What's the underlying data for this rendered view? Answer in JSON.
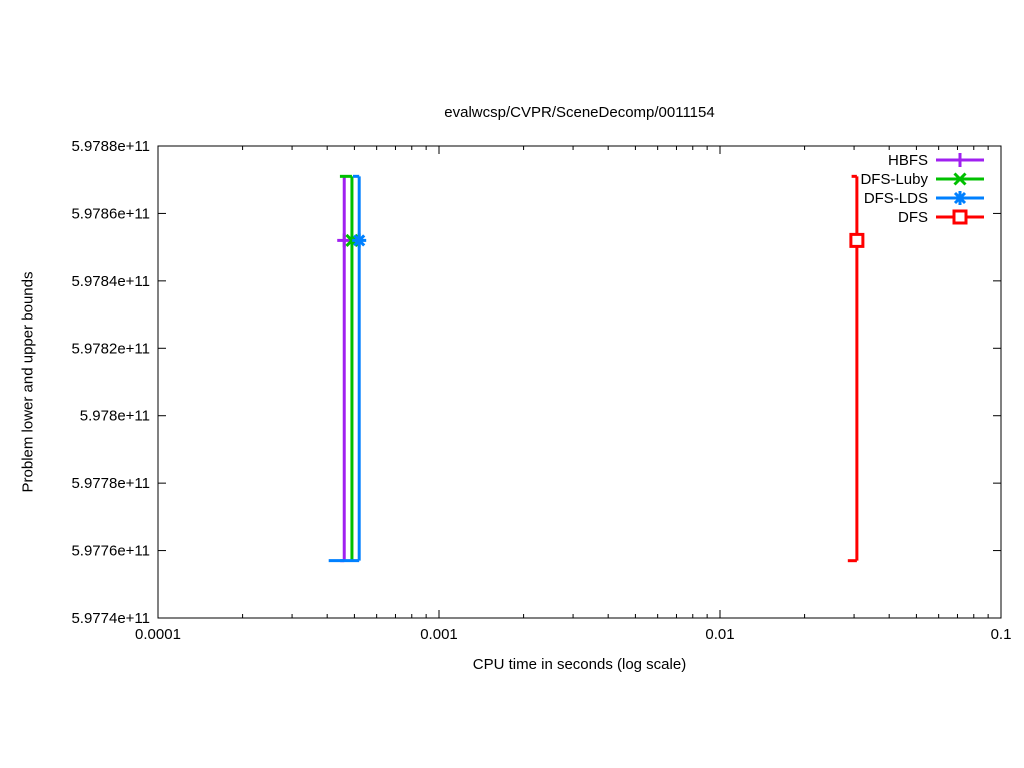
{
  "chart_data": {
    "type": "line",
    "title": "evalwcsp/CVPR/SceneDecomp/0011154",
    "xlabel": "CPU time in seconds (log scale)",
    "ylabel": "Problem lower and upper bounds",
    "x_scale": "log",
    "xlim": [
      0.0001,
      0.1
    ],
    "ylim": [
      597740000000,
      597880000000
    ],
    "grid": false,
    "legend_position": "top-right-inside",
    "x_ticks": [
      {
        "v": 0.0001,
        "label": "0.0001"
      },
      {
        "v": 0.001,
        "label": "0.001"
      },
      {
        "v": 0.01,
        "label": "0.01"
      },
      {
        "v": 0.1,
        "label": "0.1"
      }
    ],
    "y_ticks": [
      {
        "v": 597740000000,
        "label": "5.9774e+11"
      },
      {
        "v": 597760000000,
        "label": "5.9776e+11"
      },
      {
        "v": 597780000000,
        "label": "5.9778e+11"
      },
      {
        "v": 597800000000,
        "label": "5.978e+11"
      },
      {
        "v": 597820000000,
        "label": "5.9782e+11"
      },
      {
        "v": 597840000000,
        "label": "5.9784e+11"
      },
      {
        "v": 597860000000,
        "label": "5.9786e+11"
      },
      {
        "v": 597880000000,
        "label": "5.9788e+11"
      }
    ],
    "series": [
      {
        "name": "HBFS",
        "color": "#a020f0",
        "marker": "plus",
        "time": 0.00046,
        "lb_from": 0.000445,
        "ub_from": 0.00046,
        "lower_bound": 597757000000,
        "upper_bound": 597871000000,
        "final": 597852000000
      },
      {
        "name": "DFS-Luby",
        "color": "#00c000",
        "marker": "cross",
        "time": 0.00049,
        "lb_from": 0.00049,
        "ub_from": 0.000444,
        "lower_bound": 597757000000,
        "upper_bound": 597871000000,
        "final": 597852000000
      },
      {
        "name": "DFS-LDS",
        "color": "#0080ff",
        "marker": "asterisk",
        "time": 0.00052,
        "lb_from": 0.000405,
        "ub_from": 0.000494,
        "lower_bound": 597757000000,
        "upper_bound": 597871000000,
        "final": 597852000000
      },
      {
        "name": "DFS",
        "color": "#ff0000",
        "marker": "square-open",
        "time": 0.0307,
        "lb_from": 0.0285,
        "ub_from": 0.0294,
        "lower_bound": 597757000000,
        "upper_bound": 597871000000,
        "final": 597852000000
      }
    ]
  }
}
